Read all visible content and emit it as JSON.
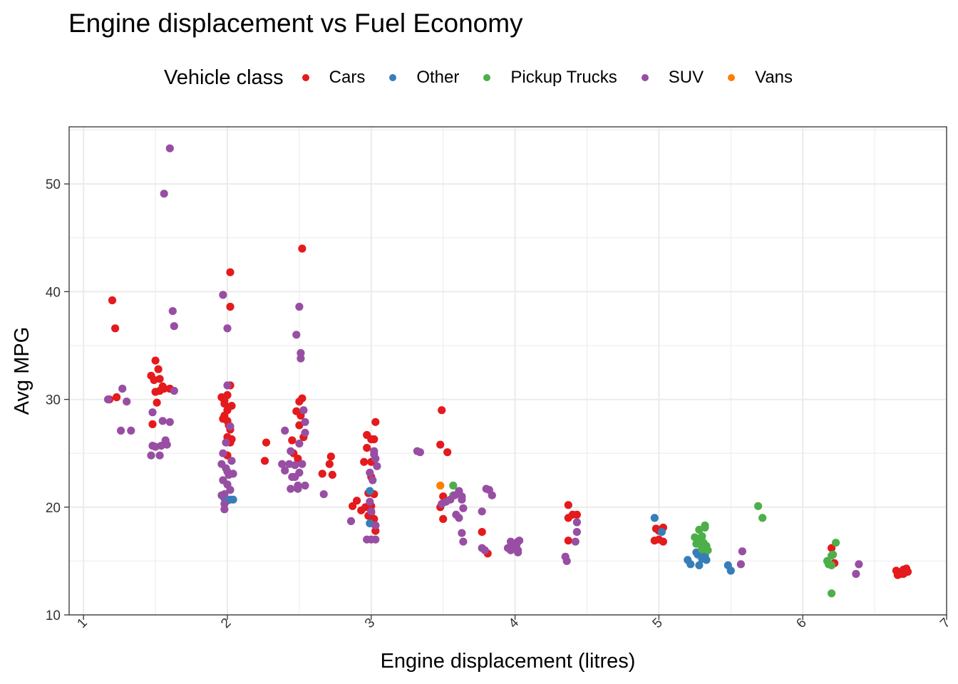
{
  "chart_data": {
    "type": "scatter",
    "title": "Engine displacement vs Fuel Economy",
    "xlabel": "Engine displacement (litres)",
    "ylabel": "Avg MPG",
    "xlim": [
      0.9,
      7
    ],
    "ylim": [
      10,
      55.3
    ],
    "x_ticks": [
      "1",
      "2",
      "3",
      "4",
      "5",
      "6",
      "7"
    ],
    "y_ticks": [
      "10",
      "20",
      "30",
      "40",
      "50"
    ],
    "grid": true,
    "legend": {
      "title": "Vehicle class",
      "position": "top"
    },
    "series": [
      {
        "name": "Cars",
        "color": "#E41A1C",
        "points": [
          [
            1.2,
            39.2
          ],
          [
            1.22,
            36.6
          ],
          [
            1.18,
            30.0
          ],
          [
            1.23,
            30.2
          ],
          [
            1.48,
            27.7
          ],
          [
            1.47,
            32.2
          ],
          [
            1.49,
            31.8
          ],
          [
            1.5,
            30.7
          ],
          [
            1.51,
            29.7
          ],
          [
            1.5,
            33.6
          ],
          [
            1.52,
            32.8
          ],
          [
            1.53,
            31.9
          ],
          [
            1.55,
            31.2
          ],
          [
            1.56,
            31.0
          ],
          [
            1.53,
            30.8
          ],
          [
            1.6,
            31.0
          ],
          [
            1.96,
            30.2
          ],
          [
            1.98,
            29.6
          ],
          [
            2.0,
            29.0
          ],
          [
            2.02,
            31.3
          ],
          [
            2.0,
            30.4
          ],
          [
            1.98,
            28.5
          ],
          [
            2.0,
            28.0
          ],
          [
            2.02,
            27.2
          ],
          [
            2.0,
            26.5
          ],
          [
            2.02,
            26.0
          ],
          [
            1.97,
            28.2
          ],
          [
            2.01,
            27.6
          ],
          [
            2.03,
            29.4
          ],
          [
            2.02,
            41.8
          ],
          [
            2.02,
            38.6
          ],
          [
            2.03,
            26.3
          ],
          [
            2.0,
            24.8
          ],
          [
            1.98,
            29.9
          ],
          [
            2.27,
            26.0
          ],
          [
            2.26,
            24.3
          ],
          [
            2.45,
            26.2
          ],
          [
            2.46,
            25.0
          ],
          [
            2.48,
            28.9
          ],
          [
            2.5,
            29.8
          ],
          [
            2.52,
            30.1
          ],
          [
            2.51,
            28.5
          ],
          [
            2.53,
            26.5
          ],
          [
            2.5,
            27.6
          ],
          [
            2.49,
            24.5
          ],
          [
            2.52,
            44.0
          ],
          [
            2.66,
            23.1
          ],
          [
            2.72,
            24.7
          ],
          [
            2.71,
            24.0
          ],
          [
            2.73,
            23.0
          ],
          [
            2.87,
            20.1
          ],
          [
            2.9,
            20.6
          ],
          [
            2.93,
            19.7
          ],
          [
            2.96,
            20.0
          ],
          [
            2.98,
            21.3
          ],
          [
            3.0,
            22.8
          ],
          [
            3.02,
            21.2
          ],
          [
            3.0,
            24.2
          ],
          [
            2.97,
            25.5
          ],
          [
            2.97,
            26.7
          ],
          [
            3.0,
            26.3
          ],
          [
            3.03,
            27.9
          ],
          [
            3.02,
            26.3
          ],
          [
            3.0,
            20.1
          ],
          [
            3.03,
            18.3
          ],
          [
            3.03,
            17.8
          ],
          [
            2.98,
            19.2
          ],
          [
            3.02,
            18.9
          ],
          [
            2.95,
            24.2
          ],
          [
            3.0,
            19.5
          ],
          [
            3.49,
            29.0
          ],
          [
            3.48,
            25.8
          ],
          [
            3.53,
            25.1
          ],
          [
            3.5,
            21.0
          ],
          [
            3.48,
            20.0
          ],
          [
            3.5,
            18.9
          ],
          [
            3.77,
            17.7
          ],
          [
            3.81,
            15.7
          ],
          [
            4.37,
            20.2
          ],
          [
            4.37,
            19.0
          ],
          [
            4.4,
            19.3
          ],
          [
            4.43,
            19.3
          ],
          [
            4.37,
            16.9
          ],
          [
            4.98,
            18.0
          ],
          [
            5.0,
            17.8
          ],
          [
            5.03,
            18.1
          ],
          [
            5.0,
            17.0
          ],
          [
            4.97,
            16.9
          ],
          [
            5.03,
            16.8
          ],
          [
            6.2,
            16.2
          ],
          [
            6.22,
            14.8
          ],
          [
            6.65,
            14.1
          ],
          [
            6.7,
            14.2
          ],
          [
            6.72,
            14.3
          ],
          [
            6.68,
            13.8
          ],
          [
            6.66,
            13.7
          ],
          [
            6.7,
            13.8
          ],
          [
            6.73,
            14.0
          ]
        ]
      },
      {
        "name": "Other",
        "color": "#377EB8",
        "points": [
          [
            1.98,
            20.8
          ],
          [
            2.0,
            20.6
          ],
          [
            2.02,
            20.7
          ],
          [
            2.04,
            20.7
          ],
          [
            2.99,
            21.5
          ],
          [
            2.99,
            18.5
          ],
          [
            4.97,
            19.0
          ],
          [
            5.02,
            17.7
          ],
          [
            5.2,
            15.1
          ],
          [
            5.22,
            14.7
          ],
          [
            5.26,
            15.8
          ],
          [
            5.27,
            15.6
          ],
          [
            5.28,
            14.6
          ],
          [
            5.3,
            15.2
          ],
          [
            5.32,
            15.5
          ],
          [
            5.33,
            15.1
          ],
          [
            5.48,
            14.6
          ],
          [
            5.5,
            14.1
          ]
        ]
      },
      {
        "name": "Pickup Trucks",
        "color": "#4DAF4A",
        "points": [
          [
            3.57,
            22.0
          ],
          [
            3.57,
            21.1
          ],
          [
            5.25,
            17.2
          ],
          [
            5.26,
            16.6
          ],
          [
            5.27,
            17.0
          ],
          [
            5.29,
            16.5
          ],
          [
            5.28,
            17.9
          ],
          [
            5.3,
            17.3
          ],
          [
            5.31,
            16.7
          ],
          [
            5.32,
            18.1
          ],
          [
            5.33,
            16.4
          ],
          [
            5.34,
            16.0
          ],
          [
            5.32,
            18.3
          ],
          [
            5.3,
            16.1
          ],
          [
            5.69,
            20.1
          ],
          [
            5.72,
            19.0
          ],
          [
            6.17,
            15.0
          ],
          [
            6.18,
            14.7
          ],
          [
            6.2,
            15.5
          ],
          [
            6.21,
            15.6
          ],
          [
            6.23,
            16.7
          ],
          [
            6.2,
            14.6
          ],
          [
            6.2,
            12.0
          ]
        ]
      },
      {
        "name": "SUV",
        "color": "#984EA3",
        "points": [
          [
            1.17,
            30.0
          ],
          [
            1.27,
            31.0
          ],
          [
            1.3,
            29.8
          ],
          [
            1.26,
            27.1
          ],
          [
            1.33,
            27.1
          ],
          [
            1.47,
            24.8
          ],
          [
            1.48,
            25.7
          ],
          [
            1.48,
            28.8
          ],
          [
            1.5,
            25.6
          ],
          [
            1.53,
            24.8
          ],
          [
            1.54,
            25.7
          ],
          [
            1.55,
            28.0
          ],
          [
            1.57,
            26.2
          ],
          [
            1.58,
            25.8
          ],
          [
            1.6,
            27.9
          ],
          [
            1.56,
            49.1
          ],
          [
            1.6,
            53.3
          ],
          [
            1.62,
            38.2
          ],
          [
            1.63,
            36.8
          ],
          [
            1.63,
            30.8
          ],
          [
            1.97,
            39.7
          ],
          [
            2.0,
            36.6
          ],
          [
            1.97,
            25.0
          ],
          [
            1.96,
            24.0
          ],
          [
            1.99,
            23.6
          ],
          [
            2.01,
            23.0
          ],
          [
            1.97,
            22.5
          ],
          [
            2.0,
            22.1
          ],
          [
            1.98,
            21.2
          ],
          [
            2.02,
            21.6
          ],
          [
            1.98,
            20.3
          ],
          [
            1.98,
            19.8
          ],
          [
            2.0,
            31.3
          ],
          [
            2.02,
            27.5
          ],
          [
            2.03,
            24.3
          ],
          [
            1.99,
            26.0
          ],
          [
            2.04,
            23.1
          ],
          [
            1.96,
            21.1
          ],
          [
            2.0,
            23.3
          ],
          [
            2.4,
            27.1
          ],
          [
            2.38,
            24.0
          ],
          [
            2.4,
            23.4
          ],
          [
            2.43,
            24.0
          ],
          [
            2.44,
            25.2
          ],
          [
            2.45,
            22.8
          ],
          [
            2.44,
            21.7
          ],
          [
            2.47,
            23.9
          ],
          [
            2.47,
            22.8
          ],
          [
            2.49,
            21.7
          ],
          [
            2.49,
            22.0
          ],
          [
            2.5,
            23.2
          ],
          [
            2.5,
            25.9
          ],
          [
            2.52,
            24.0
          ],
          [
            2.54,
            22.0
          ],
          [
            2.48,
            36.0
          ],
          [
            2.5,
            38.6
          ],
          [
            2.51,
            34.3
          ],
          [
            2.51,
            33.8
          ],
          [
            2.53,
            29.0
          ],
          [
            2.54,
            27.9
          ],
          [
            2.54,
            26.9
          ],
          [
            2.67,
            21.2
          ],
          [
            2.86,
            18.7
          ],
          [
            2.97,
            17.0
          ],
          [
            3.0,
            17.0
          ],
          [
            2.99,
            23.2
          ],
          [
            2.99,
            20.5
          ],
          [
            3.02,
            25.2
          ],
          [
            3.02,
            24.9
          ],
          [
            3.03,
            24.5
          ],
          [
            3.04,
            23.8
          ],
          [
            3.01,
            22.5
          ],
          [
            3.0,
            19.6
          ],
          [
            3.03,
            18.3
          ],
          [
            3.03,
            17.0
          ],
          [
            3.32,
            25.2
          ],
          [
            3.34,
            25.1
          ],
          [
            3.49,
            20.3
          ],
          [
            3.52,
            20.5
          ],
          [
            3.55,
            20.7
          ],
          [
            3.58,
            21.1
          ],
          [
            3.59,
            19.3
          ],
          [
            3.61,
            19.0
          ],
          [
            3.61,
            21.5
          ],
          [
            3.63,
            21.0
          ],
          [
            3.63,
            20.7
          ],
          [
            3.64,
            19.9
          ],
          [
            3.63,
            17.6
          ],
          [
            3.64,
            16.8
          ],
          [
            3.77,
            19.6
          ],
          [
            3.8,
            21.7
          ],
          [
            3.82,
            21.6
          ],
          [
            3.84,
            21.1
          ],
          [
            3.77,
            16.2
          ],
          [
            3.79,
            16.0
          ],
          [
            3.95,
            16.2
          ],
          [
            3.97,
            16.0
          ],
          [
            3.97,
            16.8
          ],
          [
            3.98,
            16.2
          ],
          [
            4.01,
            16.5
          ],
          [
            4.02,
            16.8
          ],
          [
            4.02,
            15.8
          ],
          [
            4.02,
            16.0
          ],
          [
            4.03,
            16.9
          ],
          [
            4.35,
            15.4
          ],
          [
            4.36,
            15.0
          ],
          [
            4.43,
            18.6
          ],
          [
            4.43,
            17.7
          ],
          [
            4.42,
            16.8
          ],
          [
            5.58,
            15.9
          ],
          [
            5.57,
            14.7
          ],
          [
            6.37,
            13.8
          ],
          [
            6.39,
            14.7
          ]
        ]
      },
      {
        "name": "Vans",
        "color": "#FF7F00",
        "points": [
          [
            3.48,
            22.0
          ]
        ]
      }
    ]
  }
}
